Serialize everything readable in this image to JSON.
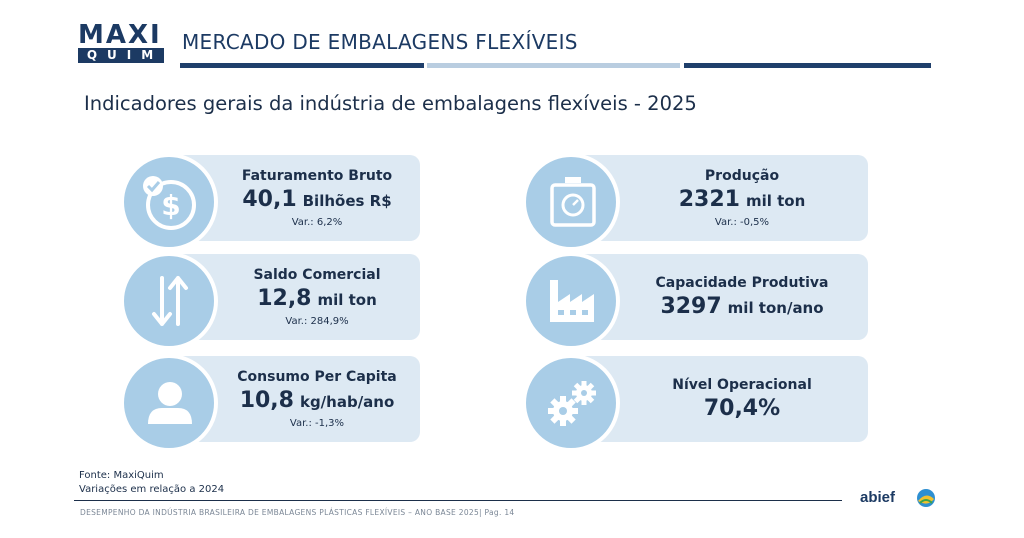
{
  "header": {
    "logo_top": "MAXI",
    "logo_bottom": "QUIM",
    "title": "MERCADO DE EMBALAGENS FLEXÍVEIS"
  },
  "subtitle": "Indicadores gerais da indústria de embalagens flexíveis - 2025",
  "indicators": [
    {
      "label": "Faturamento Bruto",
      "value": "40,1",
      "unit": "Bilhões R$",
      "var": "Var.: 6,2%",
      "icon": "dollar-icon"
    },
    {
      "label": "Saldo Comercial",
      "value": "12,8",
      "unit": "mil ton",
      "var": "Var.: 284,9%",
      "icon": "arrows-up-down-icon"
    },
    {
      "label": "Consumo Per Capita",
      "value": "10,8",
      "unit": "kg/hab/ano",
      "var": "Var.: -1,3%",
      "icon": "person-icon"
    },
    {
      "label": "Produção",
      "value": "2321",
      "unit": "mil ton",
      "var": "Var.: -0,5%",
      "icon": "scale-icon"
    },
    {
      "label": "Capacidade Produtiva",
      "value": "3297",
      "unit": "mil ton/ano",
      "var": "",
      "icon": "factory-icon"
    },
    {
      "label": "Nível Operacional",
      "value": "70,4%",
      "unit": "",
      "var": "",
      "icon": "gears-icon"
    }
  ],
  "footer": {
    "source": "Fonte: MaxiQuim",
    "note": "Variações em relação a 2024",
    "caption": "DESEMPENHO DA INDÚSTRIA BRASILEIRA DE EMBALAGENS PLÁSTICAS FLEXÍVEIS – ANO BASE 2025| Pag. 14",
    "partner_logo": "abief"
  },
  "colors": {
    "navy": "#1c3a63",
    "card_bg": "#dde9f3",
    "circle": "#a9cde7"
  }
}
